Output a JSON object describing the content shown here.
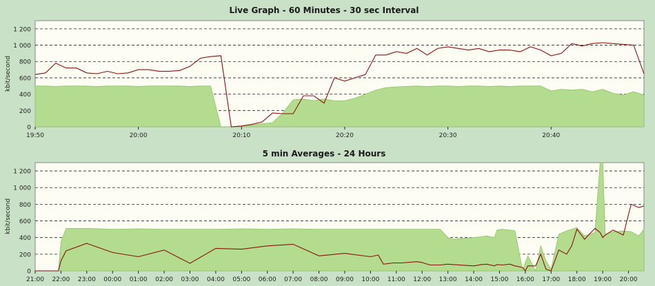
{
  "chart_data": [
    {
      "type": "area",
      "title": "Live Graph - 60 Minutes - 30 sec Interval",
      "ylabel": "kbit/second",
      "xlabel": "",
      "ylim": [
        0,
        1300
      ],
      "yticks": [
        0,
        200,
        400,
        600,
        800,
        1000,
        1200
      ],
      "ytick_labels": [
        "0",
        "200",
        "400",
        "600",
        "800",
        "1 000",
        "1 200"
      ],
      "xlim": [
        0,
        59
      ],
      "xtick_positions": [
        0,
        10,
        20,
        30,
        40,
        50
      ],
      "xtick_labels": [
        "19:50",
        "20:00",
        "20:10",
        "20:20",
        "20:30",
        "20:40"
      ],
      "grid": true,
      "x": [
        0,
        1,
        2,
        3,
        4,
        5,
        6,
        7,
        8,
        9,
        10,
        11,
        12,
        13,
        14,
        15,
        16,
        17,
        18,
        19,
        20,
        21,
        22,
        23,
        24,
        25,
        26,
        27,
        28,
        29,
        30,
        31,
        32,
        33,
        34,
        35,
        36,
        37,
        38,
        39,
        40,
        41,
        42,
        43,
        44,
        45,
        46,
        47,
        48,
        49,
        50,
        51,
        52,
        53,
        54,
        55,
        56,
        57,
        58,
        59
      ],
      "series": [
        {
          "kind": "area",
          "color": "#b3dc8e",
          "values": [
            500,
            500,
            495,
            500,
            500,
            500,
            495,
            500,
            500,
            500,
            495,
            500,
            500,
            500,
            500,
            495,
            500,
            500,
            0,
            0,
            10,
            20,
            40,
            50,
            170,
            330,
            340,
            320,
            340,
            320,
            320,
            350,
            400,
            450,
            480,
            490,
            495,
            500,
            495,
            500,
            500,
            495,
            500,
            500,
            495,
            500,
            495,
            500,
            500,
            500,
            440,
            460,
            450,
            460,
            430,
            460,
            410,
            390,
            430,
            390
          ]
        },
        {
          "kind": "line",
          "color": "#8b1010",
          "values": [
            640,
            660,
            780,
            720,
            720,
            660,
            650,
            680,
            650,
            660,
            700,
            700,
            680,
            680,
            690,
            740,
            840,
            860,
            870,
            0,
            10,
            30,
            60,
            170,
            160,
            160,
            380,
            380,
            290,
            600,
            560,
            600,
            640,
            880,
            880,
            920,
            900,
            960,
            880,
            960,
            980,
            960,
            940,
            960,
            920,
            940,
            940,
            920,
            980,
            940,
            870,
            900,
            1020,
            990,
            1020,
            1030,
            1020,
            1010,
            1000,
            650
          ]
        }
      ]
    },
    {
      "type": "area",
      "title": "5 min Averages - 24 Hours",
      "ylabel": "kbit/second",
      "xlabel": "",
      "ylim": [
        0,
        1300
      ],
      "yticks": [
        0,
        200,
        400,
        600,
        800,
        1000,
        1200
      ],
      "ytick_labels": [
        "0",
        "200",
        "400",
        "600",
        "800",
        "1 000",
        "1 200"
      ],
      "xlim": [
        0,
        23.6
      ],
      "xtick_positions": [
        0,
        1,
        2,
        3,
        4,
        5,
        6,
        7,
        8,
        9,
        10,
        11,
        12,
        13,
        14,
        15,
        16,
        17,
        18,
        19,
        20,
        21,
        22,
        23
      ],
      "xtick_labels": [
        "21:00",
        "22:00",
        "23:00",
        "00:00",
        "01:00",
        "02:00",
        "03:00",
        "04:00",
        "05:00",
        "06:00",
        "07:00",
        "08:00",
        "09:00",
        "10:00",
        "11:00",
        "12:00",
        "13:00",
        "14:00",
        "15:00",
        "16:00",
        "17:00",
        "18:00",
        "19:00",
        "20:00"
      ],
      "grid": true,
      "x": [
        0,
        0.5,
        0.9,
        1.0,
        1.2,
        2,
        3,
        4,
        5,
        6,
        7,
        8,
        9,
        10,
        11,
        12,
        13,
        13.3,
        13.5,
        13.9,
        14.2,
        14.8,
        15,
        15.3,
        15.7,
        16,
        16.2,
        17,
        17.3,
        17.5,
        17.8,
        17.9,
        18.1,
        18.4,
        18.6,
        18.9,
        19,
        19.1,
        19.4,
        19.6,
        19.8,
        20,
        20.3,
        20.6,
        20.8,
        21,
        21.3,
        21.7,
        21.9,
        22.0,
        22.1,
        22.2,
        22.4,
        22.8,
        23.1,
        23.4,
        23.6
      ],
      "series": [
        {
          "kind": "area",
          "color": "#b3dc8e",
          "values": [
            0,
            0,
            0,
            350,
            510,
            510,
            500,
            505,
            500,
            500,
            500,
            505,
            500,
            505,
            500,
            500,
            500,
            500,
            500,
            500,
            500,
            500,
            500,
            500,
            500,
            400,
            380,
            400,
            410,
            420,
            400,
            490,
            500,
            490,
            480,
            0,
            100,
            180,
            0,
            300,
            120,
            20,
            440,
            480,
            500,
            520,
            420,
            460,
            1300,
            1300,
            440,
            450,
            470,
            480,
            470,
            420,
            500
          ]
        },
        {
          "kind": "line",
          "color": "#8b1010",
          "values": [
            0,
            0,
            0,
            120,
            240,
            330,
            220,
            170,
            250,
            90,
            270,
            260,
            300,
            320,
            180,
            210,
            170,
            190,
            80,
            95,
            95,
            110,
            100,
            70,
            70,
            80,
            75,
            60,
            75,
            80,
            60,
            75,
            70,
            80,
            60,
            40,
            0,
            60,
            60,
            200,
            20,
            0,
            250,
            200,
            300,
            500,
            380,
            510,
            460,
            400,
            430,
            450,
            490,
            430,
            800,
            760,
            780
          ]
        }
      ]
    }
  ]
}
